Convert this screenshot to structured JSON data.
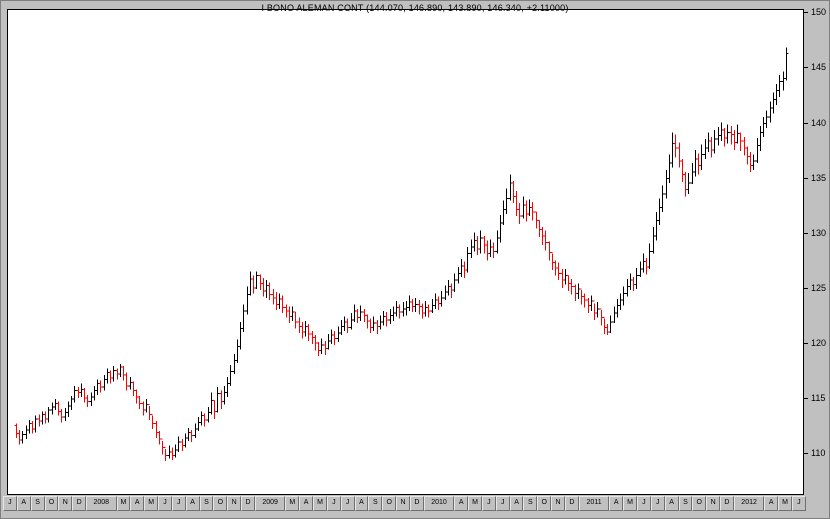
{
  "window": {
    "title": "I BONO ALEMAN CONT  (144.070, 146.890, 143.890, 146.340, +2.11000)"
  },
  "quote": {
    "symbol": "I BONO ALEMAN CONT",
    "open": "144.070",
    "high": "146.890",
    "low": "143.890",
    "close": "146.340",
    "change": "+2.11000"
  },
  "chart_data": {
    "type": "ohlc_bar",
    "title": "I BONO ALEMAN CONT",
    "ylim": [
      106.4,
      150.3
    ],
    "grid": false,
    "legend": "none",
    "y_ticks": [
      150,
      145,
      140,
      135,
      130,
      125,
      120,
      115,
      110
    ],
    "x_labels": [
      "J",
      "A",
      "S",
      "O",
      "N",
      "D",
      "2008",
      "M",
      "A",
      "M",
      "J",
      "J",
      "A",
      "S",
      "O",
      "N",
      "D",
      "2009",
      "M",
      "A",
      "M",
      "J",
      "J",
      "A",
      "S",
      "O",
      "N",
      "D",
      "2010",
      "A",
      "M",
      "J",
      "J",
      "A",
      "S",
      "O",
      "N",
      "D",
      "2011",
      "A",
      "M",
      "J",
      "J",
      "A",
      "S",
      "O",
      "N",
      "D",
      "2012",
      "A",
      "M",
      "J"
    ],
    "colors": {
      "up": "#000000",
      "down": "#ff0000"
    },
    "first_open": 112.6,
    "bars_format": [
      "high",
      "low",
      "close"
    ],
    "bars": [
      [
        112.8,
        111.5,
        111.9
      ],
      [
        112.2,
        110.9,
        111.3
      ],
      [
        112.1,
        111.0,
        111.8
      ],
      [
        112.6,
        111.4,
        112.2
      ],
      [
        113.1,
        111.9,
        112.8
      ],
      [
        113.0,
        111.9,
        112.3
      ],
      [
        113.5,
        112.0,
        113.2
      ],
      [
        113.6,
        112.5,
        113.0
      ],
      [
        113.9,
        112.7,
        113.6
      ],
      [
        113.9,
        112.8,
        113.2
      ],
      [
        114.3,
        112.9,
        114.0
      ],
      [
        114.7,
        113.6,
        114.3
      ],
      [
        115.0,
        114.0,
        114.6
      ],
      [
        114.8,
        113.5,
        113.9
      ],
      [
        114.1,
        112.9,
        113.4
      ],
      [
        114.2,
        113.0,
        113.8
      ],
      [
        114.8,
        113.4,
        114.4
      ],
      [
        115.3,
        114.0,
        115.0
      ],
      [
        116.2,
        114.7,
        115.8
      ],
      [
        116.1,
        115.1,
        115.6
      ],
      [
        116.4,
        115.2,
        115.9
      ],
      [
        116.0,
        114.7,
        115.1
      ],
      [
        115.4,
        114.3,
        114.8
      ],
      [
        115.6,
        114.4,
        115.2
      ],
      [
        116.2,
        114.9,
        115.8
      ],
      [
        116.8,
        115.4,
        116.4
      ],
      [
        116.7,
        115.6,
        116.1
      ],
      [
        117.2,
        115.8,
        116.8
      ],
      [
        117.8,
        116.4,
        117.4
      ],
      [
        117.6,
        116.4,
        116.9
      ],
      [
        118.0,
        116.6,
        117.6
      ],
      [
        117.8,
        116.8,
        117.3
      ],
      [
        118.2,
        117.0,
        117.9
      ],
      [
        118.0,
        116.7,
        117.2
      ],
      [
        117.4,
        115.8,
        116.2
      ],
      [
        117.0,
        115.9,
        116.5
      ],
      [
        116.6,
        115.3,
        115.8
      ],
      [
        115.9,
        114.6,
        115.2
      ],
      [
        115.3,
        114.1,
        114.6
      ],
      [
        114.8,
        113.5,
        114.0
      ],
      [
        115.0,
        113.8,
        114.5
      ],
      [
        114.4,
        113.1,
        113.6
      ],
      [
        113.5,
        112.3,
        112.8
      ],
      [
        113.0,
        111.5,
        112.0
      ],
      [
        112.1,
        110.9,
        111.4
      ],
      [
        111.2,
        110.0,
        110.6
      ],
      [
        110.5,
        109.4,
        109.9
      ],
      [
        110.8,
        109.6,
        110.2
      ],
      [
        110.6,
        109.5,
        109.9
      ],
      [
        110.9,
        109.7,
        110.4
      ],
      [
        111.6,
        110.2,
        111.1
      ],
      [
        111.4,
        110.3,
        110.8
      ],
      [
        111.9,
        110.6,
        111.5
      ],
      [
        112.4,
        111.2,
        112.0
      ],
      [
        112.2,
        111.1,
        111.7
      ],
      [
        112.8,
        111.5,
        112.3
      ],
      [
        113.4,
        112.1,
        112.9
      ],
      [
        113.9,
        112.6,
        113.5
      ],
      [
        113.7,
        112.5,
        113.1
      ],
      [
        114.3,
        112.9,
        113.8
      ],
      [
        115.6,
        113.6,
        114.9
      ],
      [
        114.9,
        113.2,
        113.9
      ],
      [
        116.1,
        113.8,
        115.5
      ],
      [
        115.8,
        114.1,
        114.8
      ],
      [
        116.2,
        114.5,
        115.6
      ],
      [
        117.0,
        115.2,
        116.4
      ],
      [
        118.1,
        116.2,
        117.5
      ],
      [
        119.1,
        117.3,
        118.5
      ],
      [
        120.4,
        118.3,
        119.8
      ],
      [
        122.0,
        119.5,
        121.4
      ],
      [
        123.6,
        121.1,
        123.0
      ],
      [
        125.2,
        122.7,
        124.5
      ],
      [
        126.6,
        124.4,
        125.9
      ],
      [
        126.2,
        124.6,
        125.1
      ],
      [
        126.6,
        125.0,
        126.2
      ],
      [
        126.3,
        124.9,
        125.5
      ],
      [
        126.0,
        124.3,
        124.8
      ],
      [
        125.8,
        124.2,
        125.3
      ],
      [
        125.6,
        124.0,
        124.5
      ],
      [
        125.0,
        123.6,
        124.2
      ],
      [
        124.7,
        123.1,
        123.6
      ],
      [
        124.6,
        123.2,
        124.1
      ],
      [
        124.4,
        122.8,
        123.3
      ],
      [
        123.6,
        122.4,
        123.0
      ],
      [
        123.4,
        121.9,
        122.5
      ],
      [
        123.4,
        122.1,
        122.9
      ],
      [
        122.9,
        121.4,
        122.0
      ],
      [
        122.4,
        121.0,
        121.6
      ],
      [
        122.0,
        120.5,
        121.1
      ],
      [
        122.1,
        120.7,
        121.6
      ],
      [
        121.8,
        120.3,
        120.9
      ],
      [
        121.2,
        120.0,
        120.6
      ],
      [
        120.8,
        119.4,
        120.1
      ],
      [
        120.2,
        118.9,
        119.4
      ],
      [
        120.5,
        119.1,
        119.9
      ],
      [
        120.3,
        119.0,
        119.6
      ],
      [
        120.9,
        119.5,
        120.3
      ],
      [
        121.3,
        120.0,
        120.8
      ],
      [
        121.2,
        119.9,
        120.5
      ],
      [
        121.6,
        120.2,
        121.0
      ],
      [
        122.2,
        120.8,
        121.6
      ],
      [
        122.5,
        121.2,
        122.0
      ],
      [
        122.3,
        121.0,
        121.5
      ],
      [
        122.8,
        121.3,
        122.2
      ],
      [
        123.6,
        122.0,
        123.0
      ],
      [
        123.2,
        121.9,
        122.4
      ],
      [
        123.5,
        122.1,
        122.9
      ],
      [
        123.2,
        122.0,
        122.6
      ],
      [
        122.7,
        121.4,
        122.1
      ],
      [
        122.3,
        121.0,
        121.5
      ],
      [
        122.5,
        121.2,
        121.9
      ],
      [
        122.2,
        120.9,
        121.6
      ],
      [
        122.6,
        121.3,
        122.0
      ],
      [
        123.0,
        121.7,
        122.5
      ],
      [
        122.9,
        121.6,
        122.2
      ],
      [
        123.2,
        121.8,
        122.6
      ],
      [
        123.4,
        122.1,
        122.8
      ],
      [
        123.9,
        122.5,
        123.3
      ],
      [
        123.6,
        122.3,
        122.9
      ],
      [
        123.8,
        122.5,
        123.2
      ],
      [
        123.9,
        122.6,
        123.3
      ],
      [
        124.4,
        123.0,
        123.8
      ],
      [
        124.1,
        122.9,
        123.4
      ],
      [
        124.2,
        122.9,
        123.6
      ],
      [
        124.0,
        122.7,
        123.4
      ],
      [
        123.7,
        122.3,
        122.8
      ],
      [
        123.9,
        122.5,
        123.3
      ],
      [
        123.6,
        122.4,
        123.0
      ],
      [
        124.1,
        122.8,
        123.5
      ],
      [
        124.6,
        123.2,
        124.0
      ],
      [
        124.3,
        123.1,
        123.7
      ],
      [
        124.8,
        123.4,
        124.2
      ],
      [
        125.3,
        124.0,
        124.7
      ],
      [
        125.8,
        124.4,
        125.2
      ],
      [
        125.5,
        124.2,
        124.9
      ],
      [
        126.4,
        124.7,
        125.8
      ],
      [
        127.0,
        125.5,
        126.4
      ],
      [
        127.7,
        126.1,
        127.1
      ],
      [
        127.5,
        126.0,
        126.7
      ],
      [
        128.8,
        126.5,
        128.2
      ],
      [
        129.5,
        127.8,
        128.8
      ],
      [
        130.1,
        128.4,
        129.4
      ],
      [
        129.8,
        128.1,
        128.6
      ],
      [
        130.3,
        128.2,
        129.6
      ],
      [
        129.8,
        128.2,
        129.0
      ],
      [
        129.4,
        127.6,
        128.2
      ],
      [
        129.5,
        127.9,
        128.8
      ],
      [
        129.2,
        127.8,
        128.4
      ],
      [
        130.3,
        128.2,
        129.6
      ],
      [
        131.7,
        129.2,
        131.0
      ],
      [
        133.0,
        130.8,
        132.2
      ],
      [
        134.1,
        131.8,
        133.2
      ],
      [
        135.4,
        133.0,
        134.6
      ],
      [
        134.8,
        132.8,
        133.4
      ],
      [
        133.9,
        131.6,
        132.2
      ],
      [
        132.8,
        130.9,
        131.6
      ],
      [
        133.4,
        131.4,
        132.6
      ],
      [
        133.0,
        131.1,
        131.8
      ],
      [
        133.1,
        131.6,
        132.4
      ],
      [
        132.9,
        131.2,
        132.0
      ],
      [
        132.0,
        130.5,
        131.2
      ],
      [
        131.2,
        129.7,
        130.4
      ],
      [
        130.6,
        129.0,
        129.8
      ],
      [
        130.3,
        128.5,
        129.2
      ],
      [
        129.3,
        127.6,
        128.3
      ],
      [
        128.2,
        126.7,
        127.4
      ],
      [
        127.6,
        126.2,
        126.9
      ],
      [
        127.4,
        125.8,
        126.4
      ],
      [
        126.8,
        125.1,
        125.8
      ],
      [
        126.8,
        125.4,
        126.2
      ],
      [
        126.2,
        124.8,
        125.5
      ],
      [
        125.9,
        124.5,
        125.2
      ],
      [
        125.4,
        123.9,
        124.6
      ],
      [
        125.5,
        124.1,
        125.0
      ],
      [
        124.9,
        123.6,
        124.3
      ],
      [
        124.6,
        123.3,
        124.0
      ],
      [
        124.2,
        122.8,
        123.5
      ],
      [
        124.4,
        123.0,
        123.9
      ],
      [
        123.7,
        122.2,
        122.8
      ],
      [
        123.8,
        122.4,
        123.2
      ],
      [
        123.1,
        121.7,
        122.4
      ],
      [
        122.3,
        120.9,
        121.5
      ],
      [
        121.8,
        120.8,
        121.1
      ],
      [
        122.6,
        121.0,
        122.0
      ],
      [
        123.4,
        121.9,
        122.8
      ],
      [
        124.1,
        122.4,
        123.5
      ],
      [
        124.6,
        123.1,
        124.0
      ],
      [
        125.2,
        123.5,
        124.6
      ],
      [
        125.9,
        124.3,
        125.2
      ],
      [
        126.4,
        124.9,
        125.8
      ],
      [
        126.1,
        124.8,
        125.4
      ],
      [
        126.9,
        125.0,
        126.2
      ],
      [
        127.5,
        126.1,
        126.8
      ],
      [
        128.2,
        126.5,
        127.5
      ],
      [
        127.8,
        126.3,
        127.0
      ],
      [
        129.1,
        126.8,
        128.4
      ],
      [
        130.6,
        128.2,
        129.8
      ],
      [
        132.0,
        129.4,
        131.2
      ],
      [
        133.2,
        130.8,
        132.4
      ],
      [
        134.4,
        132.0,
        133.6
      ],
      [
        135.8,
        133.2,
        135.0
      ],
      [
        137.2,
        134.6,
        136.4
      ],
      [
        139.2,
        136.0,
        138.2
      ],
      [
        139.0,
        136.9,
        137.8
      ],
      [
        138.3,
        136.0,
        136.6
      ],
      [
        136.8,
        134.7,
        135.4
      ],
      [
        135.6,
        133.4,
        134.0
      ],
      [
        135.5,
        133.6,
        134.6
      ],
      [
        136.4,
        134.5,
        135.6
      ],
      [
        137.6,
        135.2,
        136.8
      ],
      [
        137.3,
        135.4,
        136.2
      ],
      [
        138.1,
        135.8,
        137.2
      ],
      [
        138.6,
        136.8,
        137.8
      ],
      [
        139.2,
        137.4,
        138.4
      ],
      [
        138.8,
        136.9,
        137.6
      ],
      [
        139.4,
        137.3,
        138.6
      ],
      [
        139.7,
        138.0,
        138.9
      ],
      [
        140.1,
        138.4,
        139.4
      ],
      [
        139.6,
        137.9,
        138.7
      ],
      [
        139.9,
        138.2,
        139.2
      ],
      [
        139.8,
        138.1,
        139.0
      ],
      [
        139.4,
        137.6,
        138.3
      ],
      [
        139.9,
        138.2,
        139.1
      ],
      [
        139.2,
        137.5,
        138.4
      ],
      [
        138.8,
        137.1,
        137.8
      ],
      [
        137.9,
        136.3,
        137.0
      ],
      [
        137.4,
        135.6,
        136.2
      ],
      [
        137.2,
        135.8,
        136.6
      ],
      [
        138.7,
        136.4,
        138.0
      ],
      [
        139.8,
        137.5,
        139.2
      ],
      [
        140.6,
        138.8,
        140.0
      ],
      [
        141.2,
        139.6,
        140.6
      ],
      [
        142.0,
        140.1,
        141.4
      ],
      [
        142.8,
        140.9,
        142.2
      ],
      [
        143.6,
        141.7,
        143.0
      ],
      [
        144.4,
        142.4,
        143.8
      ],
      [
        144.7,
        143.0,
        144.1
      ],
      [
        146.89,
        143.89,
        146.34
      ]
    ]
  }
}
